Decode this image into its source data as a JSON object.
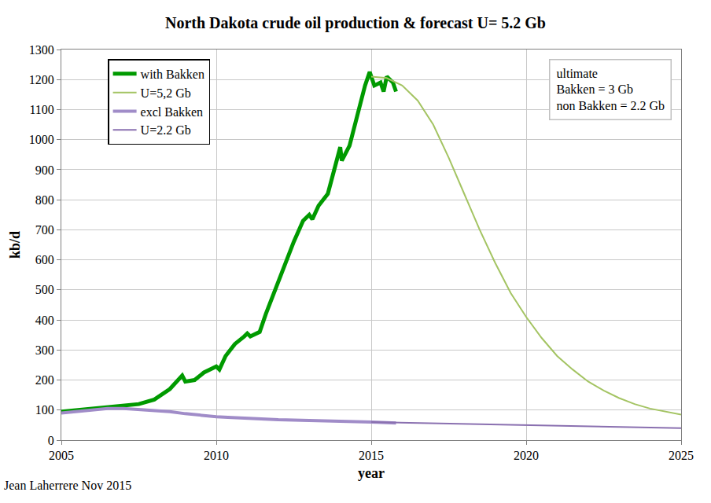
{
  "chart_data": {
    "type": "line",
    "title": "North Dakota crude oil production & forecast U= 5.2 Gb",
    "x_label": "year",
    "y_label": "kb/d",
    "xlim": [
      2005,
      2025
    ],
    "xticks": [
      2005,
      2010,
      2015,
      2020,
      2025
    ],
    "ylim": [
      0,
      1300
    ],
    "yticks": [
      0,
      100,
      200,
      300,
      400,
      500,
      600,
      700,
      800,
      900,
      1000,
      1100,
      1200,
      1300
    ],
    "grid": true,
    "legend": "top-left",
    "series": [
      {
        "name": "with Bakken",
        "color": "#009a00",
        "x": [
          2005,
          2005.5,
          2006,
          2006.5,
          2007,
          2007.5,
          2008,
          2008.5,
          2008.9,
          2009,
          2009.3,
          2009.6,
          2010,
          2010.1,
          2010.3,
          2010.6,
          2010.9,
          2011,
          2011.1,
          2011.4,
          2011.6,
          2011.9,
          2012.2,
          2012.5,
          2012.8,
          2013,
          2013.1,
          2013.3,
          2013.6,
          2013.8,
          2014,
          2014.05,
          2014.3,
          2014.6,
          2014.8,
          2014.95,
          2015.1,
          2015.3,
          2015.4,
          2015.5,
          2015.7,
          2015.8
        ],
        "values": [
          95,
          100,
          105,
          108,
          115,
          120,
          135,
          170,
          215,
          195,
          200,
          225,
          245,
          235,
          280,
          320,
          345,
          355,
          345,
          360,
          420,
          500,
          580,
          660,
          730,
          750,
          735,
          780,
          820,
          900,
          975,
          930,
          980,
          1100,
          1180,
          1225,
          1180,
          1190,
          1160,
          1210,
          1190,
          1160
        ]
      },
      {
        "name": "U=5,2 Gb",
        "color": "#a4c463",
        "x": [
          2015,
          2015.5,
          2016,
          2016.5,
          2017,
          2017.5,
          2018,
          2018.5,
          2019,
          2019.5,
          2020,
          2020.5,
          2021,
          2021.5,
          2022,
          2022.5,
          2023,
          2023.5,
          2024,
          2024.5,
          2025
        ],
        "values": [
          1210,
          1205,
          1180,
          1130,
          1050,
          940,
          820,
          700,
          590,
          490,
          410,
          340,
          280,
          235,
          195,
          165,
          140,
          120,
          105,
          95,
          85
        ]
      },
      {
        "name": "excl Bakken",
        "color": "#a08cc8",
        "x": [
          2005,
          2006,
          2006.5,
          2007,
          2007.5,
          2008,
          2008.5,
          2009,
          2009.5,
          2010,
          2010.5,
          2011,
          2011.5,
          2012,
          2012.5,
          2013,
          2013.5,
          2014,
          2014.5,
          2015,
          2015.5,
          2015.8
        ],
        "values": [
          90,
          100,
          105,
          105,
          102,
          98,
          95,
          88,
          82,
          78,
          75,
          72,
          70,
          68,
          67,
          66,
          64,
          63,
          62,
          60,
          58,
          57
        ]
      },
      {
        "name": "U=2.2 Gb",
        "color": "#8a70b0",
        "x": [
          2015,
          2016,
          2017,
          2018,
          2019,
          2020,
          2021,
          2022,
          2023,
          2024,
          2025
        ],
        "values": [
          60,
          58,
          56,
          54,
          52,
          50,
          48,
          47,
          45,
          43,
          40
        ]
      }
    ],
    "annotations": [
      {
        "text": "ultimate\nBakken = 3 Gb\nnon Bakken = 2.2 Gb"
      },
      {
        "text": "Jean Laherrere Nov 2015"
      }
    ]
  }
}
